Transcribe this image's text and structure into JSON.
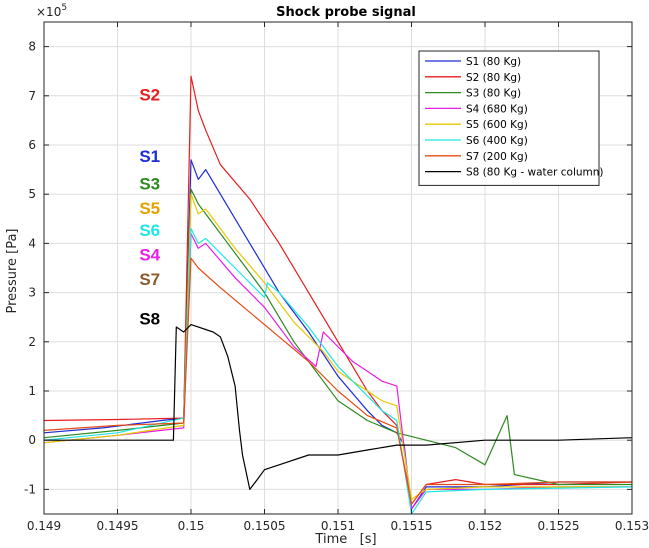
{
  "chart_data": {
    "type": "line",
    "title": "Shock probe signal",
    "xlabel": "Time   [s]",
    "ylabel": "Pressure [Pa]",
    "y_exponent_base": "×10",
    "y_exponent_power": "5",
    "xlim": [
      0.149,
      0.153
    ],
    "ylim": [
      -1.5,
      8.5
    ],
    "y_scale": 100000,
    "xticks": [
      0.149,
      0.1495,
      0.15,
      0.1505,
      0.151,
      0.1515,
      0.152,
      0.1525,
      0.153
    ],
    "xtick_labels": [
      "0.149",
      "0.1495",
      "0.15",
      "0.1505",
      "0.151",
      "0.1515",
      "0.152",
      "0.1525",
      "0.153"
    ],
    "yticks": [
      -1,
      0,
      1,
      2,
      3,
      4,
      5,
      6,
      7,
      8
    ],
    "ytick_labels": [
      "-1",
      "0",
      "1",
      "2",
      "3",
      "4",
      "5",
      "6",
      "7",
      "8"
    ],
    "grid": true,
    "legend_position": "top-right",
    "series": [
      {
        "name": "S1 (80 Kg)",
        "color": "#1f2bd6",
        "points": [
          [
            0.149,
            0.15
          ],
          [
            0.1494,
            0.25
          ],
          [
            0.1498,
            0.4
          ],
          [
            0.14995,
            0.45
          ],
          [
            0.15,
            5.7
          ],
          [
            0.15005,
            5.3
          ],
          [
            0.1501,
            5.5
          ],
          [
            0.1502,
            5.0
          ],
          [
            0.1504,
            4.0
          ],
          [
            0.1506,
            3.0
          ],
          [
            0.1508,
            2.2
          ],
          [
            0.151,
            1.3
          ],
          [
            0.1512,
            0.6
          ],
          [
            0.1513,
            0.3
          ],
          [
            0.1514,
            0.15
          ],
          [
            0.15145,
            -0.1
          ],
          [
            0.1515,
            -1.4
          ],
          [
            0.1516,
            -0.95
          ],
          [
            0.152,
            -0.95
          ],
          [
            0.1525,
            -0.85
          ],
          [
            0.153,
            -0.85
          ]
        ]
      },
      {
        "name": "S2 (80 Kg)",
        "color": "#e61e1e",
        "points": [
          [
            0.149,
            0.4
          ],
          [
            0.1495,
            0.42
          ],
          [
            0.14995,
            0.45
          ],
          [
            0.15,
            7.4
          ],
          [
            0.15005,
            6.7
          ],
          [
            0.1501,
            6.3
          ],
          [
            0.1502,
            5.6
          ],
          [
            0.1504,
            4.9
          ],
          [
            0.1506,
            4.0
          ],
          [
            0.1508,
            3.0
          ],
          [
            0.151,
            2.0
          ],
          [
            0.1512,
            1.0
          ],
          [
            0.1513,
            0.6
          ],
          [
            0.1514,
            0.3
          ],
          [
            0.1515,
            -1.3
          ],
          [
            0.1516,
            -0.9
          ],
          [
            0.1518,
            -0.8
          ],
          [
            0.152,
            -0.9
          ],
          [
            0.1525,
            -0.9
          ],
          [
            0.153,
            -0.85
          ]
        ]
      },
      {
        "name": "S3 (80 Kg)",
        "color": "#2d8a1f",
        "points": [
          [
            0.149,
            0.05
          ],
          [
            0.1495,
            0.2
          ],
          [
            0.14995,
            0.35
          ],
          [
            0.15,
            5.1
          ],
          [
            0.15005,
            4.8
          ],
          [
            0.1501,
            4.6
          ],
          [
            0.1503,
            3.8
          ],
          [
            0.1505,
            3.0
          ],
          [
            0.1507,
            2.0
          ],
          [
            0.1509,
            1.2
          ],
          [
            0.151,
            0.8
          ],
          [
            0.1512,
            0.4
          ],
          [
            0.1514,
            0.15
          ],
          [
            0.1516,
            0.0
          ],
          [
            0.1518,
            -0.15
          ],
          [
            0.152,
            -0.5
          ],
          [
            0.15215,
            0.5
          ],
          [
            0.1522,
            -0.7
          ],
          [
            0.1525,
            -0.9
          ],
          [
            0.153,
            -0.9
          ]
        ]
      },
      {
        "name": "S4 (680 Kg)",
        "color": "#e61ee6",
        "points": [
          [
            0.149,
            -0.05
          ],
          [
            0.1495,
            0.1
          ],
          [
            0.14995,
            0.25
          ],
          [
            0.15,
            4.2
          ],
          [
            0.15005,
            3.9
          ],
          [
            0.1501,
            4.0
          ],
          [
            0.1503,
            3.3
          ],
          [
            0.1505,
            2.7
          ],
          [
            0.1507,
            1.9
          ],
          [
            0.15085,
            1.5
          ],
          [
            0.1509,
            2.2
          ],
          [
            0.1511,
            1.6
          ],
          [
            0.1512,
            1.4
          ],
          [
            0.1513,
            1.2
          ],
          [
            0.1514,
            1.1
          ],
          [
            0.1515,
            -1.4
          ],
          [
            0.1516,
            -1.0
          ],
          [
            0.152,
            -1.0
          ],
          [
            0.1525,
            -0.95
          ],
          [
            0.153,
            -0.95
          ]
        ]
      },
      {
        "name": "S5 (600 Kg)",
        "color": "#e6c800",
        "points": [
          [
            0.149,
            -0.05
          ],
          [
            0.1495,
            0.1
          ],
          [
            0.14995,
            0.3
          ],
          [
            0.15,
            5.0
          ],
          [
            0.15005,
            4.6
          ],
          [
            0.1501,
            4.7
          ],
          [
            0.1503,
            3.9
          ],
          [
            0.1505,
            3.2
          ],
          [
            0.1507,
            2.4
          ],
          [
            0.1509,
            1.8
          ],
          [
            0.151,
            1.4
          ],
          [
            0.1511,
            1.2
          ],
          [
            0.1512,
            1.0
          ],
          [
            0.1513,
            0.8
          ],
          [
            0.1514,
            0.7
          ],
          [
            0.1515,
            -1.2
          ],
          [
            0.1516,
            -1.0
          ],
          [
            0.152,
            -0.95
          ],
          [
            0.153,
            -0.95
          ]
        ]
      },
      {
        "name": "S6 (400 Kg)",
        "color": "#1ee6e6",
        "points": [
          [
            0.149,
            0.0
          ],
          [
            0.1495,
            0.15
          ],
          [
            0.14995,
            0.45
          ],
          [
            0.15,
            4.3
          ],
          [
            0.15005,
            4.0
          ],
          [
            0.1501,
            4.1
          ],
          [
            0.1503,
            3.5
          ],
          [
            0.1505,
            2.9
          ],
          [
            0.15052,
            3.2
          ],
          [
            0.1506,
            3.0
          ],
          [
            0.1508,
            2.3
          ],
          [
            0.151,
            1.5
          ],
          [
            0.1512,
            0.9
          ],
          [
            0.1513,
            0.6
          ],
          [
            0.1514,
            0.4
          ],
          [
            0.1515,
            -1.5
          ],
          [
            0.1516,
            -1.05
          ],
          [
            0.152,
            -1.0
          ],
          [
            0.153,
            -0.95
          ]
        ]
      },
      {
        "name": "S7 (200 Kg)",
        "color": "#e64b14",
        "points": [
          [
            0.149,
            0.2
          ],
          [
            0.1495,
            0.3
          ],
          [
            0.14995,
            0.35
          ],
          [
            0.15,
            3.7
          ],
          [
            0.15005,
            3.5
          ],
          [
            0.1502,
            3.1
          ],
          [
            0.1504,
            2.6
          ],
          [
            0.1506,
            2.1
          ],
          [
            0.1508,
            1.6
          ],
          [
            0.151,
            1.0
          ],
          [
            0.1512,
            0.5
          ],
          [
            0.1514,
            0.25
          ],
          [
            0.1515,
            -1.3
          ],
          [
            0.1516,
            -0.9
          ],
          [
            0.152,
            -0.9
          ],
          [
            0.1525,
            -0.85
          ],
          [
            0.153,
            -0.85
          ]
        ]
      },
      {
        "name": "S8 (80 Kg - water column)",
        "color": "#000000",
        "points": [
          [
            0.149,
            0.0
          ],
          [
            0.1495,
            0.0
          ],
          [
            0.14988,
            0.0
          ],
          [
            0.1499,
            2.3
          ],
          [
            0.14995,
            2.2
          ],
          [
            0.15,
            2.35
          ],
          [
            0.15015,
            2.2
          ],
          [
            0.1502,
            2.1
          ],
          [
            0.15025,
            1.7
          ],
          [
            0.1503,
            1.1
          ],
          [
            0.15033,
            0.2
          ],
          [
            0.15035,
            -0.3
          ],
          [
            0.1504,
            -1.0
          ],
          [
            0.15045,
            -0.8
          ],
          [
            0.1505,
            -0.6
          ],
          [
            0.1506,
            -0.5
          ],
          [
            0.1508,
            -0.3
          ],
          [
            0.151,
            -0.3
          ],
          [
            0.1512,
            -0.2
          ],
          [
            0.1514,
            -0.1
          ],
          [
            0.1516,
            -0.1
          ],
          [
            0.152,
            0.0
          ],
          [
            0.1525,
            0.0
          ],
          [
            0.153,
            0.05
          ]
        ]
      }
    ],
    "annotations": [
      {
        "text": "S2",
        "color": "#e61e1e",
        "x": 0.14979,
        "y": 6.9
      },
      {
        "text": "S1",
        "color": "#1f2bd6",
        "x": 0.14979,
        "y": 5.65
      },
      {
        "text": "S3",
        "color": "#2d8a1f",
        "x": 0.14979,
        "y": 5.1
      },
      {
        "text": "S5",
        "color": "#e6a000",
        "x": 0.14979,
        "y": 4.6
      },
      {
        "text": "S6",
        "color": "#1ee6e6",
        "x": 0.14979,
        "y": 4.15
      },
      {
        "text": "S4",
        "color": "#e61ee6",
        "x": 0.14979,
        "y": 3.65
      },
      {
        "text": "S7",
        "color": "#8b5a2b",
        "x": 0.14979,
        "y": 3.15
      },
      {
        "text": "S8",
        "color": "#000000",
        "x": 0.14979,
        "y": 2.35
      }
    ]
  }
}
